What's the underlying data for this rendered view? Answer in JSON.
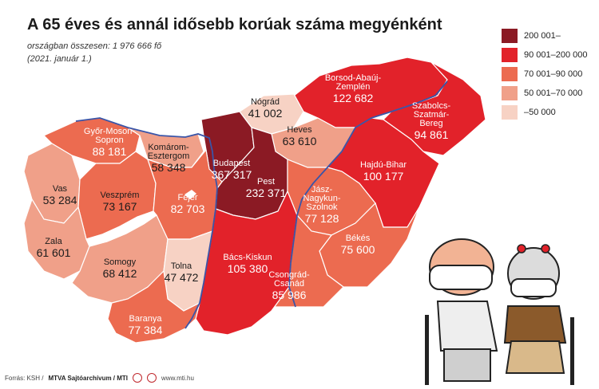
{
  "title": "A 65 éves és annál idősebb korúak száma megyénként",
  "subtitle": "országban összesen: 1 976 666 fő",
  "date": "(2021. január 1.)",
  "legend": [
    {
      "label": "200 001–",
      "color": "#8b1a24"
    },
    {
      "label": "90 001–200 000",
      "color": "#e2222a"
    },
    {
      "label": "70 001–90 000",
      "color": "#ec6b50"
    },
    {
      "label": "50 001–70 000",
      "color": "#f0a089"
    },
    {
      "label": "–50 000",
      "color": "#f7d2c4"
    }
  ],
  "counties": [
    {
      "name": "Borsod-Abaúj-Zemplén",
      "name_lines": [
        "Borsod-Abaúj-",
        "Zemplén"
      ],
      "value": "122 682",
      "color": "#e2222a",
      "dark": true
    },
    {
      "name": "Nógrád",
      "name_lines": [
        "Nógrád"
      ],
      "value": "41 002",
      "color": "#f7d2c4",
      "dark": false
    },
    {
      "name": "Szabolcs-Szatmár-Bereg",
      "name_lines": [
        "Szabolcs-",
        "Szatmár-",
        "Bereg"
      ],
      "value": "94 861",
      "color": "#e2222a",
      "dark": true
    },
    {
      "name": "Győr-Moson-Sopron",
      "name_lines": [
        "Győr-Moson-",
        "Sopron"
      ],
      "value": "88 181",
      "color": "#ec6b50",
      "dark": true
    },
    {
      "name": "Komárom-Esztergom",
      "name_lines": [
        "Komárom-",
        "Esztergom"
      ],
      "value": "58 348",
      "color": "#f0a089",
      "dark": false
    },
    {
      "name": "Heves",
      "name_lines": [
        "Heves"
      ],
      "value": "63 610",
      "color": "#f0a089",
      "dark": false
    },
    {
      "name": "Budapest",
      "name_lines": [
        "Budapest"
      ],
      "value": "367 317",
      "color": "#8b1a24",
      "dark": true
    },
    {
      "name": "Pest",
      "name_lines": [
        "Pest"
      ],
      "value": "232 371",
      "color": "#8b1a24",
      "dark": true
    },
    {
      "name": "Hajdú-Bihar",
      "name_lines": [
        "Hajdú-Bihar"
      ],
      "value": "100 177",
      "color": "#e2222a",
      "dark": true
    },
    {
      "name": "Vas",
      "name_lines": [
        "Vas"
      ],
      "value": "53 284",
      "color": "#f0a089",
      "dark": false
    },
    {
      "name": "Veszprém",
      "name_lines": [
        "Veszprém"
      ],
      "value": "73 167",
      "color": "#ec6b50",
      "dark": false
    },
    {
      "name": "Jász-Nagykun-Szolnok",
      "name_lines": [
        "Jász-",
        "Nagykun-",
        "Szolnok"
      ],
      "value": "77 128",
      "color": "#ec6b50",
      "dark": true
    },
    {
      "name": "Fejér",
      "name_lines": [
        "Fejér"
      ],
      "value": "82 703",
      "color": "#ec6b50",
      "dark": true
    },
    {
      "name": "Zala",
      "name_lines": [
        "Zala"
      ],
      "value": "61 601",
      "color": "#f0a089",
      "dark": false
    },
    {
      "name": "Somogy",
      "name_lines": [
        "Somogy"
      ],
      "value": "68 412",
      "color": "#f0a089",
      "dark": false
    },
    {
      "name": "Tolna",
      "name_lines": [
        "Tolna"
      ],
      "value": "47 472",
      "color": "#f7d2c4",
      "dark": false
    },
    {
      "name": "Bács-Kiskun",
      "name_lines": [
        "Bács-Kiskun"
      ],
      "value": "105 380",
      "color": "#e2222a",
      "dark": true
    },
    {
      "name": "Békés",
      "name_lines": [
        "Békés"
      ],
      "value": "75 600",
      "color": "#ec6b50",
      "dark": true
    },
    {
      "name": "Csongrád-Csanád",
      "name_lines": [
        "Csongrád-",
        "Csanád"
      ],
      "value": "85 986",
      "color": "#ec6b50",
      "dark": true
    },
    {
      "name": "Baranya",
      "name_lines": [
        "Baranya"
      ],
      "value": "77 384",
      "color": "#ec6b50",
      "dark": true
    }
  ],
  "footer": {
    "source": "Forrás: KSH /",
    "agency": "MTVA Sajtóarchívum / MTI",
    "site": "www.mti.hu"
  }
}
